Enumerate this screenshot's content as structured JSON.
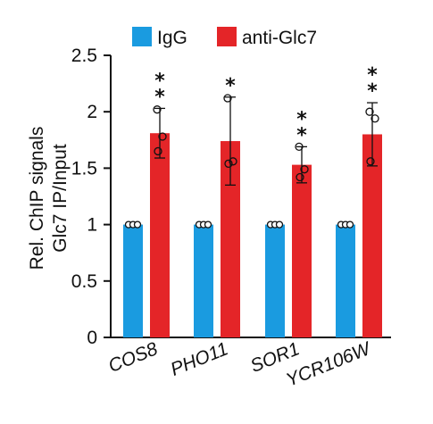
{
  "chart_data": {
    "type": "bar",
    "categories": [
      "COS8",
      "PHO11",
      "SOR1",
      "YCR106W"
    ],
    "series": [
      {
        "name": "IgG",
        "color": "#1a9be0",
        "values": [
          1.0,
          1.0,
          1.0,
          1.0
        ],
        "points": [
          [
            1.0,
            1.0,
            1.0
          ],
          [
            1.0,
            1.0,
            1.0
          ],
          [
            1.0,
            1.0,
            1.0
          ],
          [
            1.0,
            1.0,
            1.0
          ]
        ]
      },
      {
        "name": "anti-Glc7",
        "color": "#e42528",
        "values": [
          1.81,
          1.74,
          1.53,
          1.8
        ],
        "errors": [
          0.22,
          0.39,
          0.16,
          0.28
        ],
        "points": [
          [
            2.02,
            1.78,
            1.65
          ],
          [
            2.12,
            1.56,
            1.54
          ],
          [
            1.69,
            1.49,
            1.42
          ],
          [
            2.0,
            1.94,
            1.56
          ]
        ],
        "significance": [
          "**",
          "*",
          "**",
          "**"
        ]
      }
    ],
    "ylabel_lines": [
      "Rel. ChIP signals",
      "Glc7 IP/Input"
    ],
    "ylim": [
      0,
      2.5
    ],
    "yticks": [
      "0",
      "0.5",
      "1",
      "1.5",
      "2",
      "2.5"
    ],
    "legend_position": "top",
    "grid": false
  }
}
